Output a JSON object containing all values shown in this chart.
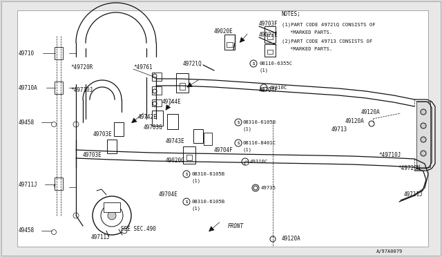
{
  "bg_color": "#d8d8d8",
  "diagram_bg": "#e8e8e8",
  "inner_bg": "#ffffff",
  "lc": "#111111",
  "notes_lines": [
    "NOTES;",
    "(1)PART CODE 4972lQ CONSISTS OF",
    "   *MARKED PARTS.",
    "(2)PART CODE 49713 CONSISTS OF",
    "   *MARKED PARTS."
  ],
  "footer": "A/97A0079"
}
